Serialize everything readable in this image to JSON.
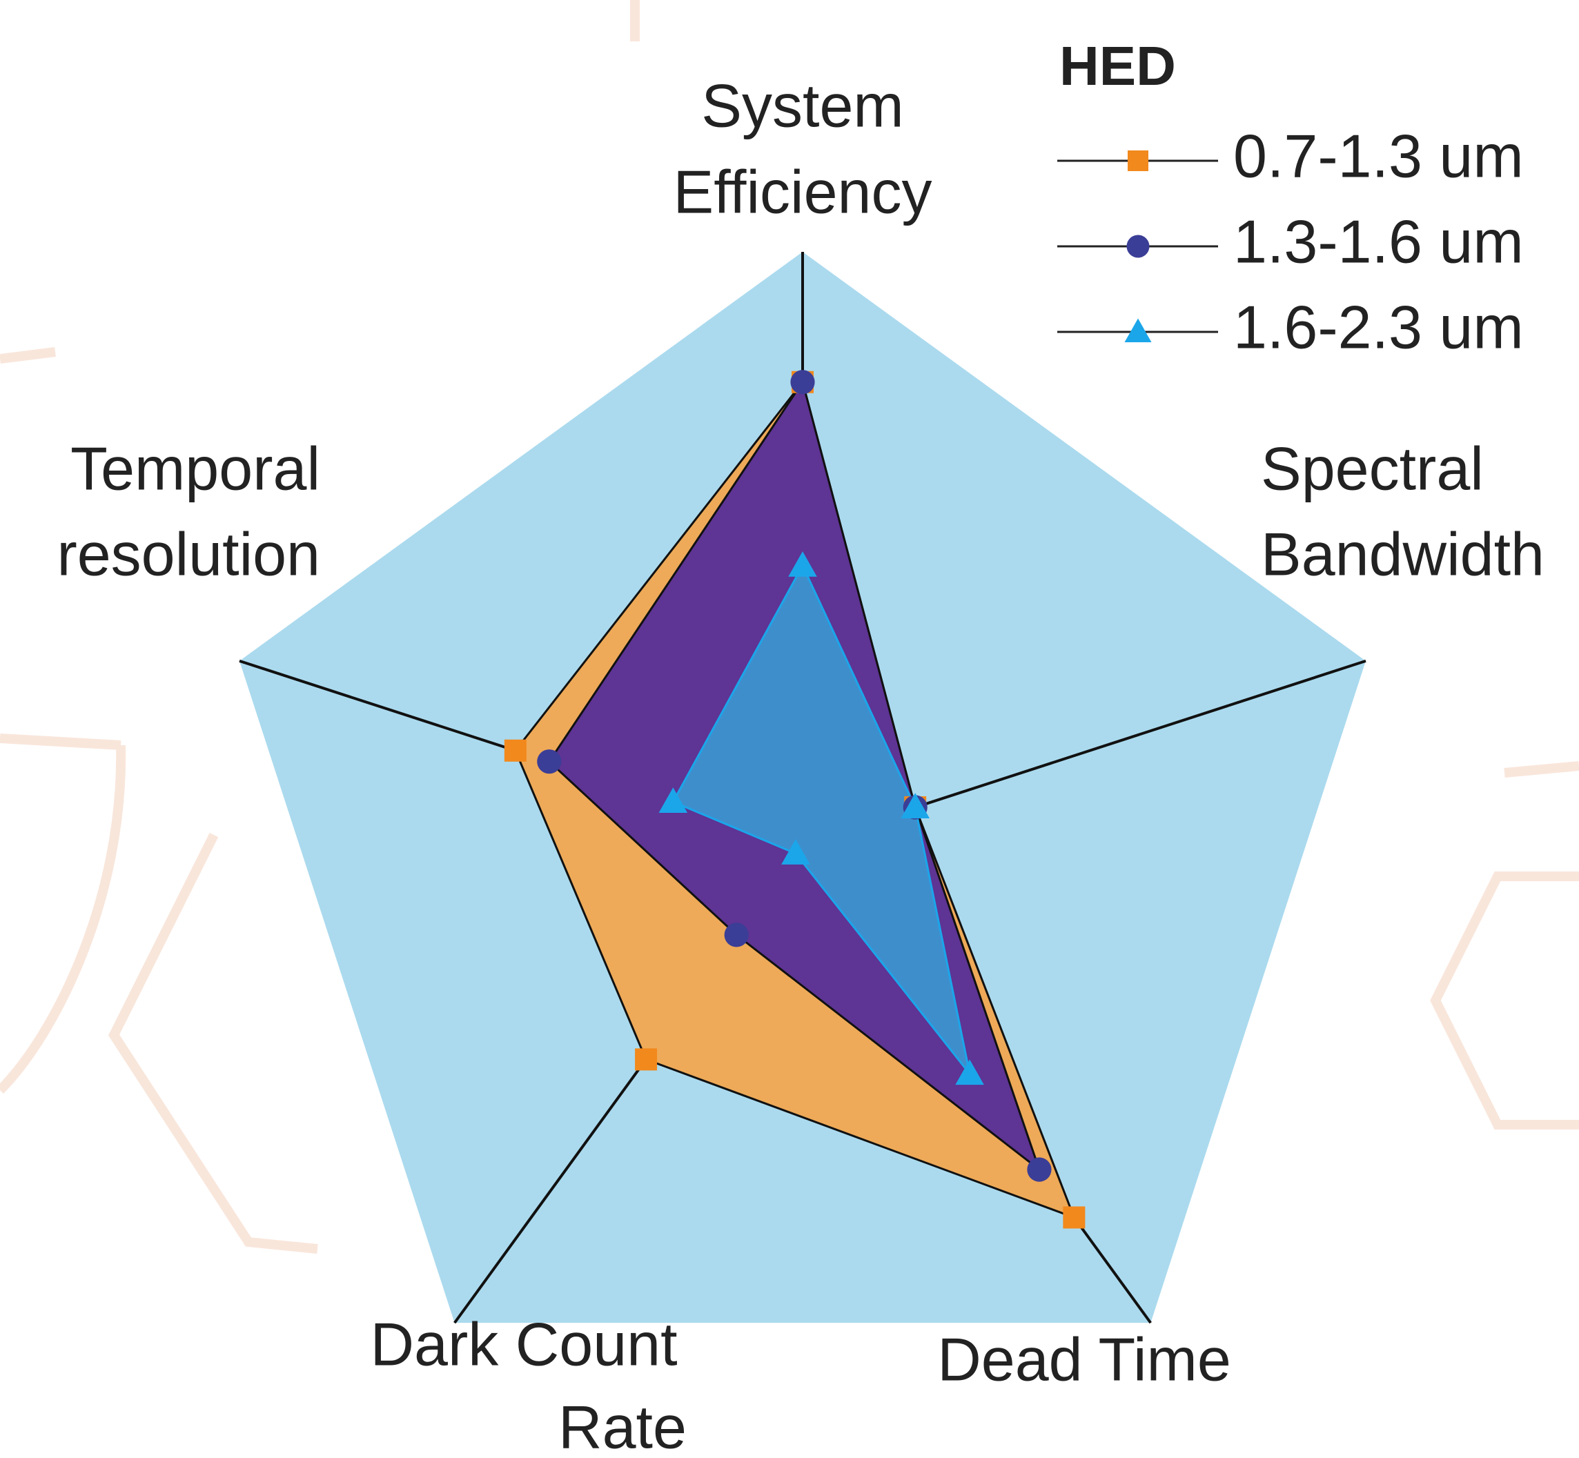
{
  "chart_data": {
    "type": "radar",
    "categories": [
      [
        "System",
        "Efficiency"
      ],
      [
        "Spectral",
        "Bandwidth"
      ],
      [
        "Dead Time"
      ],
      [
        "Dark Count",
        "Rate"
      ],
      [
        "Temporal",
        "resolution"
      ]
    ],
    "rlim": [
      0,
      1
    ],
    "background_color": "#abdaee",
    "legend_title": "HED",
    "legend": "upper right",
    "series": [
      {
        "name": "0.7-1.3 um",
        "color": "#f2891d",
        "fill_color": "#eeaa58",
        "marker": "square",
        "values": [
          0.78,
          0.2,
          0.78,
          0.45,
          0.51
        ]
      },
      {
        "name": "1.3-1.6 um",
        "color": "#3b3e96",
        "fill_color": "#5e3494",
        "marker": "circle",
        "values": [
          0.78,
          0.2,
          0.68,
          0.19,
          0.45
        ]
      },
      {
        "name": "1.6-2.3 um",
        "color": "#1ba6ea",
        "fill_color": "#3a9fd6",
        "marker": "triangle",
        "values": [
          0.47,
          0.2,
          0.48,
          0.02,
          0.23
        ]
      }
    ]
  }
}
